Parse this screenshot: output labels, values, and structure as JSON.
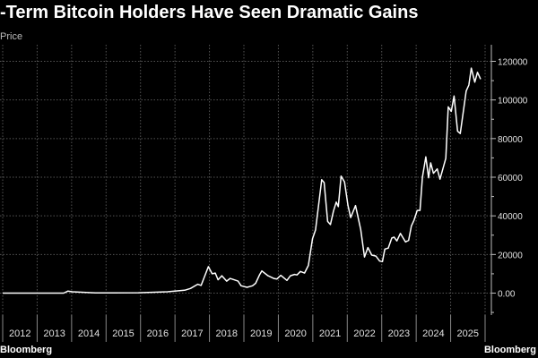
{
  "chart_data": {
    "type": "line",
    "title": "-Term Bitcoin Holders Have Seen Dramatic Gains",
    "subtitle": "Price",
    "source": "Bloomberg",
    "source_right": "Bloomberg",
    "xlabel": "",
    "ylabel": "",
    "xlim": [
      2012,
      2026
    ],
    "ylim": [
      -10000,
      125000
    ],
    "grid": true,
    "legend": "none",
    "x_tick_labels": [
      "2012",
      "2013",
      "2014",
      "2015",
      "2016",
      "2017",
      "2018",
      "2019",
      "2020",
      "2021",
      "2022",
      "2023",
      "2024",
      "2025"
    ],
    "y_ticks": [
      0,
      20000,
      40000,
      60000,
      80000,
      100000,
      120000
    ],
    "y_tick_labels": [
      "0.00",
      "20000",
      "40000",
      "60000",
      "80000",
      "100000",
      "120000"
    ],
    "colors": {
      "line": "#ffffff",
      "grid": "#555555",
      "axis": "#bdbdbd",
      "background": "#000000"
    },
    "series": [
      {
        "name": "Price",
        "x": [
          2012.0,
          2013.77,
          2013.89,
          2014.02,
          2014.69,
          2015.94,
          2016.78,
          2017.28,
          2017.45,
          2017.66,
          2017.76,
          2017.97,
          2018.08,
          2018.17,
          2018.25,
          2018.36,
          2018.5,
          2018.6,
          2018.83,
          2018.92,
          2019.09,
          2019.25,
          2019.34,
          2019.46,
          2019.52,
          2019.7,
          2019.88,
          2019.96,
          2020.07,
          2020.25,
          2020.35,
          2020.47,
          2020.54,
          2020.64,
          2020.76,
          2020.87,
          2020.99,
          2021.08,
          2021.26,
          2021.33,
          2021.43,
          2021.51,
          2021.6,
          2021.68,
          2021.74,
          2021.82,
          2021.92,
          2022.02,
          2022.1,
          2022.24,
          2022.39,
          2022.5,
          2022.6,
          2022.71,
          2022.83,
          2022.94,
          2023.02,
          2023.09,
          2023.19,
          2023.29,
          2023.36,
          2023.44,
          2023.54,
          2023.69,
          2023.78,
          2023.86,
          2023.94,
          2024.03,
          2024.11,
          2024.18,
          2024.28,
          2024.36,
          2024.42,
          2024.5,
          2024.61,
          2024.69,
          2024.86,
          2024.93,
          2025.02,
          2025.1,
          2025.2,
          2025.28,
          2025.45,
          2025.53,
          2025.6,
          2025.7,
          2025.78,
          2025.87
        ],
        "values": [
          0,
          0,
          1000,
          700,
          100,
          200,
          700,
          1500,
          2400,
          4600,
          4000,
          13700,
          10000,
          10400,
          6900,
          9000,
          6200,
          7600,
          6200,
          3800,
          3000,
          3800,
          5100,
          9700,
          11500,
          9000,
          7500,
          7300,
          9200,
          6600,
          9000,
          9700,
          9400,
          11200,
          10400,
          14300,
          28100,
          32700,
          58700,
          57200,
          37100,
          35500,
          42500,
          47100,
          44800,
          60600,
          57600,
          45300,
          39100,
          45300,
          32900,
          18700,
          23600,
          19700,
          19200,
          16600,
          16300,
          22800,
          23300,
          28500,
          29000,
          27000,
          30900,
          26500,
          27300,
          34800,
          37800,
          42800,
          42800,
          60000,
          70500,
          59700,
          67400,
          62000,
          64300,
          59000,
          69800,
          96400,
          94100,
          102000,
          83800,
          82600,
          104600,
          107700,
          116500,
          109200,
          114300,
          110800
        ]
      }
    ]
  }
}
